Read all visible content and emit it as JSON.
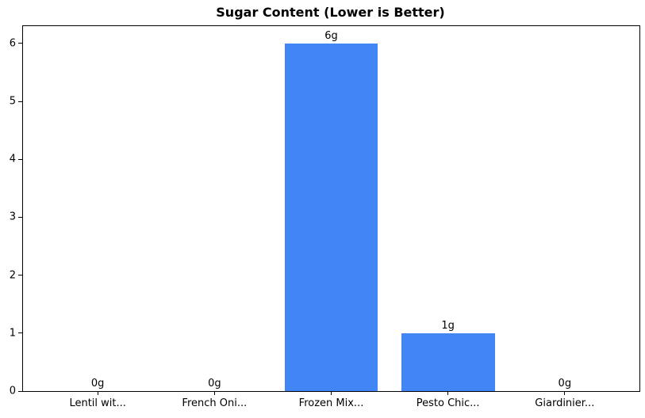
{
  "chart_data": {
    "type": "bar",
    "title": "Sugar Content (Lower is Better)",
    "categories": [
      "Lentil wit...",
      "French Oni...",
      "Frozen Mix...",
      "Pesto Chic...",
      "Giardinier..."
    ],
    "values": [
      0,
      0,
      6,
      1,
      0
    ],
    "value_labels": [
      "0g",
      "0g",
      "6g",
      "1g",
      "0g"
    ],
    "xlabel": "",
    "ylabel": "",
    "yticks": [
      0,
      1,
      2,
      3,
      4,
      5,
      6
    ],
    "ylim": [
      0,
      6.3
    ],
    "xlim": [
      -0.64,
      4.64
    ],
    "bar_width_units": 0.8,
    "bar_color": "#4285F4",
    "axis_color": "#000000",
    "text_color": "#000000",
    "background_color": "#ffffff",
    "grid": false,
    "legend": "none"
  }
}
